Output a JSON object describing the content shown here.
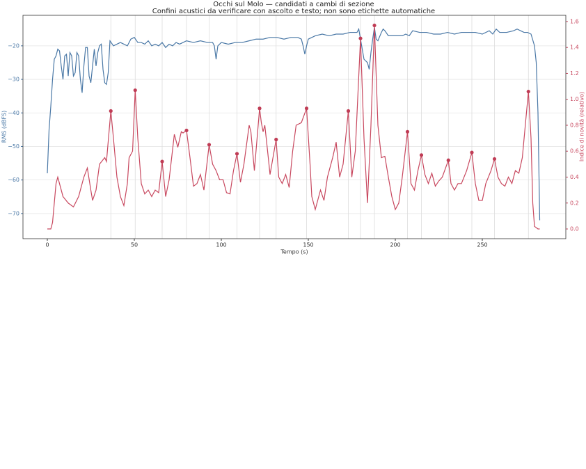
{
  "chart_data": {
    "type": "line",
    "title": "Occhi sul Molo — candidati a cambi di sezione",
    "subtitle": "Confini acustici da verificare con ascolto e testo; non sono etichette automatiche",
    "x_label": "Tempo (s)",
    "y_label": "RMS (dBFS)",
    "y2_label": "Indice di novità (relativo)",
    "xlim": [
      -14,
      298
    ],
    "xticks": [
      0,
      50,
      100,
      150,
      200,
      250
    ],
    "ylim": [
      -77.5,
      -10.9
    ],
    "yticks": [
      {
        "value": -20,
        "label": "−20"
      },
      {
        "value": -30,
        "label": "−30"
      },
      {
        "value": -40,
        "label": "−40"
      },
      {
        "value": -50,
        "label": "−50"
      },
      {
        "value": -60,
        "label": "−60"
      },
      {
        "value": -70,
        "label": "−70"
      }
    ],
    "y2lim": [
      -0.075,
      1.648
    ],
    "y2ticks": [
      {
        "value": 0,
        "label": "0.0"
      },
      0.2,
      0.4,
      0.6,
      0.8,
      {
        "value": 1,
        "label": "1.0"
      },
      1.2,
      1.4,
      1.6
    ],
    "grid": true,
    "series": [
      {
        "type": "line",
        "color": "#4a78a6",
        "x": [
          0,
          1,
          2,
          3,
          4,
          5,
          6,
          7,
          8,
          9,
          10,
          11,
          12,
          13,
          14,
          15,
          16,
          17,
          18,
          19,
          20,
          21,
          22,
          23,
          24,
          25,
          26,
          27,
          28,
          29,
          30,
          31,
          32,
          33,
          34,
          35,
          36,
          38,
          40,
          42,
          44,
          46,
          48,
          50,
          52,
          54,
          56,
          58,
          60,
          62,
          64,
          66,
          68,
          70,
          72,
          74,
          76,
          78,
          80,
          84,
          88,
          92,
          95,
          96,
          97,
          98,
          100,
          104,
          108,
          112,
          116,
          120,
          124,
          128,
          132,
          136,
          140,
          144,
          146,
          147,
          148,
          149,
          150,
          154,
          158,
          162,
          166,
          170,
          174,
          178,
          179,
          180,
          182,
          184,
          185,
          186,
          187,
          188,
          189,
          190,
          192,
          193,
          194,
          196,
          200,
          204,
          206,
          208,
          210,
          214,
          218,
          222,
          226,
          230,
          234,
          238,
          242,
          246,
          250,
          254,
          256,
          258,
          260,
          264,
          268,
          270,
          272,
          274,
          276,
          278,
          280,
          281,
          282,
          283
        ],
        "values": [
          -58,
          -45,
          -38,
          -30,
          -24,
          -23,
          -21,
          -21.5,
          -26,
          -30,
          -23,
          -22.5,
          -29,
          -22,
          -23,
          -29,
          -28,
          -22,
          -23,
          -30,
          -34,
          -26,
          -20.5,
          -20.5,
          -29,
          -31,
          -26,
          -21,
          -26,
          -22,
          -20,
          -19.5,
          -27,
          -31,
          -31.5,
          -28,
          -18.5,
          -20,
          -19.5,
          -19,
          -19.5,
          -20,
          -18,
          -17.5,
          -19,
          -19,
          -19.5,
          -18.5,
          -20,
          -19.5,
          -20,
          -19,
          -20.5,
          -19.5,
          -20,
          -19,
          -19.5,
          -19,
          -18.5,
          -19,
          -18.5,
          -19,
          -19,
          -20,
          -24,
          -20,
          -19,
          -19.5,
          -19,
          -19,
          -18.5,
          -18,
          -18,
          -17.5,
          -17.5,
          -18,
          -17.5,
          -17.5,
          -18,
          -20,
          -22.5,
          -20,
          -18,
          -17,
          -16.5,
          -17,
          -16.5,
          -16.5,
          -16,
          -16,
          -15,
          -18,
          -24,
          -25,
          -27,
          -22,
          -18,
          -14.5,
          -18,
          -18.5,
          -16,
          -15,
          -15.5,
          -17,
          -17,
          -17,
          -16.5,
          -17,
          -15.5,
          -16,
          -16,
          -16.5,
          -16.5,
          -16,
          -16.5,
          -16,
          -16,
          -16,
          -16.5,
          -15.5,
          -16.5,
          -15,
          -16,
          -16,
          -15.5,
          -15,
          -15.5,
          -16,
          -16,
          -16.5,
          -20,
          -25,
          -40,
          -72
        ]
      },
      {
        "type": "line",
        "axis": "y2",
        "color": "#c8485f",
        "x": [
          0,
          2,
          3,
          5,
          6,
          7,
          9,
          12,
          15,
          18,
          21,
          23,
          25,
          26,
          28,
          30,
          33,
          34,
          36.5,
          38,
          40,
          42,
          44,
          46,
          47,
          49,
          50.5,
          52,
          54,
          56,
          58,
          60,
          62,
          64,
          66,
          68,
          70,
          73,
          75,
          77,
          78,
          80,
          82,
          84,
          86,
          88,
          90,
          93,
          95,
          97,
          99,
          101,
          103,
          105,
          107,
          109,
          111,
          113,
          116,
          117,
          119,
          122,
          123,
          124,
          125,
          127,
          128,
          131.5,
          133,
          135,
          137,
          139,
          141,
          143,
          146,
          149,
          151,
          152,
          154,
          157,
          159,
          161,
          164,
          166,
          168,
          170,
          173,
          175,
          177,
          180,
          182,
          184,
          186,
          188,
          190,
          192,
          194,
          196,
          198,
          200,
          202,
          204,
          207,
          209,
          211,
          213,
          215,
          217,
          219,
          221,
          223,
          225,
          227,
          230.5,
          232,
          234,
          236,
          238,
          241,
          244,
          246,
          248,
          250,
          252,
          255,
          257,
          259,
          261,
          263,
          265,
          267,
          269,
          271,
          273,
          276.5,
          278,
          279,
          280,
          282,
          283
        ],
        "values": [
          0,
          0,
          0.05,
          0.35,
          0.4,
          0.35,
          0.25,
          0.2,
          0.17,
          0.25,
          0.4,
          0.47,
          0.3,
          0.22,
          0.3,
          0.5,
          0.55,
          0.52,
          0.91,
          0.7,
          0.4,
          0.25,
          0.18,
          0.35,
          0.55,
          0.6,
          1.07,
          0.7,
          0.35,
          0.27,
          0.3,
          0.25,
          0.3,
          0.28,
          0.52,
          0.25,
          0.38,
          0.73,
          0.63,
          0.75,
          0.74,
          0.76,
          0.55,
          0.33,
          0.35,
          0.42,
          0.3,
          0.65,
          0.5,
          0.45,
          0.38,
          0.38,
          0.28,
          0.27,
          0.45,
          0.58,
          0.36,
          0.5,
          0.8,
          0.75,
          0.45,
          0.93,
          0.82,
          0.75,
          0.8,
          0.55,
          0.42,
          0.69,
          0.4,
          0.35,
          0.42,
          0.32,
          0.6,
          0.8,
          0.82,
          0.93,
          0.5,
          0.25,
          0.15,
          0.3,
          0.22,
          0.4,
          0.55,
          0.67,
          0.4,
          0.5,
          0.91,
          0.4,
          0.6,
          1.47,
          0.7,
          0.2,
          0.8,
          1.57,
          0.8,
          0.55,
          0.56,
          0.4,
          0.25,
          0.15,
          0.2,
          0.4,
          0.75,
          0.35,
          0.3,
          0.45,
          0.57,
          0.42,
          0.35,
          0.43,
          0.33,
          0.37,
          0.4,
          0.53,
          0.35,
          0.3,
          0.35,
          0.35,
          0.45,
          0.59,
          0.35,
          0.22,
          0.22,
          0.35,
          0.45,
          0.54,
          0.4,
          0.35,
          0.33,
          0.4,
          0.35,
          0.45,
          0.43,
          0.55,
          1.06,
          0.7,
          0.2,
          0.02,
          0,
          0
        ]
      },
      {
        "type": "scatter",
        "axis": "y2",
        "color": "#c03c55",
        "candidates": true,
        "x": [
          36.5,
          50.5,
          66,
          80,
          93,
          109,
          122,
          131.5,
          149,
          173,
          180,
          188,
          207,
          215,
          230.5,
          244,
          257,
          276.5
        ],
        "values": [
          0.91,
          1.07,
          0.52,
          0.76,
          0.65,
          0.58,
          0.93,
          0.69,
          0.93,
          0.91,
          1.47,
          1.57,
          0.75,
          0.57,
          0.53,
          0.59,
          0.54,
          1.06
        ]
      }
    ]
  }
}
